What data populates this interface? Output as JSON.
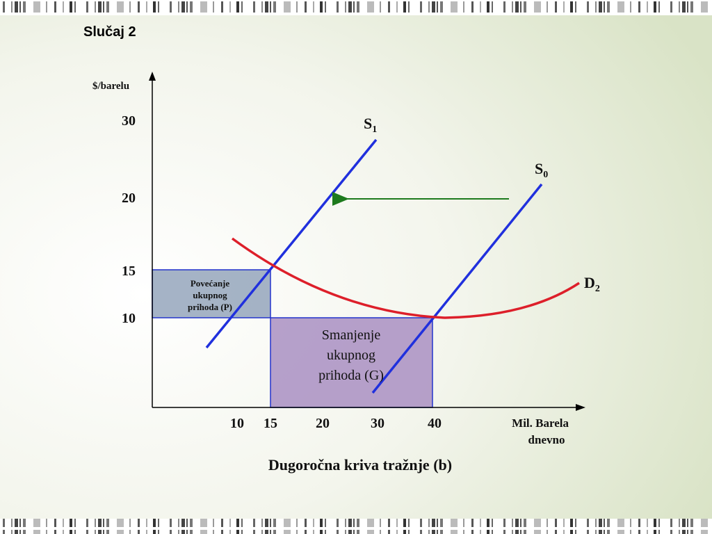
{
  "title": "Slučaj 2",
  "y_axis_label": "$/barelu",
  "y_ticks": [
    "30",
    "20",
    "15",
    "10"
  ],
  "x_ticks": [
    "10",
    "15",
    "20",
    "30",
    "40"
  ],
  "x_axis_label": [
    "Mil. Barela",
    "dnevno"
  ],
  "curves": [
    {
      "base": "S",
      "sub": "1"
    },
    {
      "base": "S",
      "sub": "0"
    },
    {
      "base": "D",
      "sub": "2"
    }
  ],
  "boxes": [
    {
      "lines": [
        "Povećanje",
        "ukupnog",
        "prihoda (P)"
      ]
    },
    {
      "lines": [
        "Smanjenje",
        "ukupnog",
        "prihoda (G)"
      ]
    }
  ],
  "caption": "Dugoročna kriva tražnje (b)"
}
